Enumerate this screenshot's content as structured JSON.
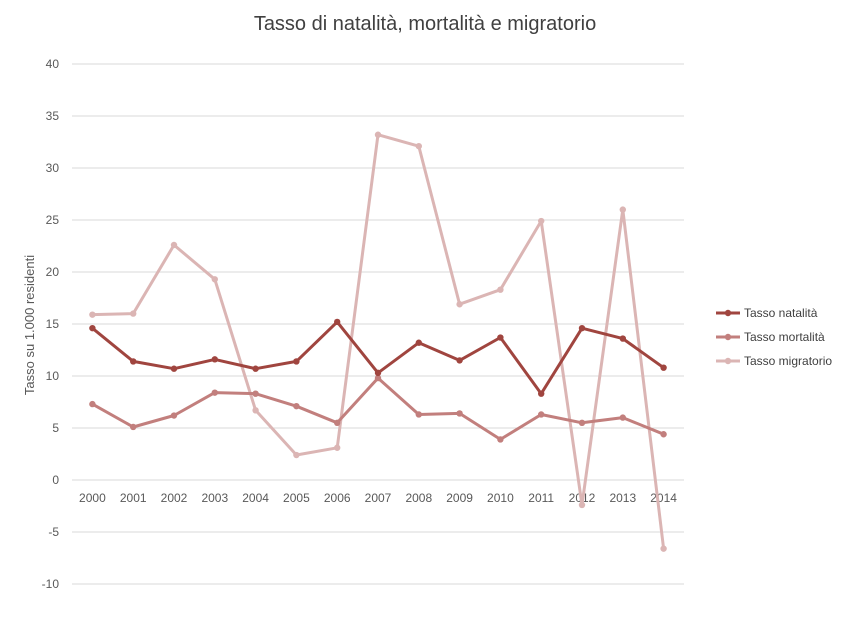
{
  "chart_data": {
    "type": "line",
    "title": "Tasso di natalità, mortalità e migratorio",
    "xlabel": "",
    "ylabel": "Tasso su 1.000 residenti",
    "categories": [
      "2000",
      "2001",
      "2002",
      "2003",
      "2004",
      "2005",
      "2006",
      "2007",
      "2008",
      "2009",
      "2010",
      "2011",
      "2012",
      "2013",
      "2014"
    ],
    "y_ticks": [
      "40",
      "35",
      "30",
      "25",
      "20",
      "15",
      "10",
      "5",
      "0",
      "-5",
      "-10"
    ],
    "ylim": [
      -10,
      40
    ],
    "grid": true,
    "legend_position": "right",
    "series": [
      {
        "name": "Tasso natalità",
        "color": "#a0453f",
        "values": [
          14.6,
          11.4,
          10.7,
          11.6,
          10.7,
          11.4,
          15.2,
          10.3,
          13.2,
          11.5,
          13.7,
          8.3,
          14.6,
          13.6,
          10.8
        ]
      },
      {
        "name": "Tasso mortalità",
        "color": "#c27f7d",
        "values": [
          7.3,
          5.1,
          6.2,
          8.4,
          8.3,
          7.1,
          5.5,
          9.8,
          6.3,
          6.4,
          3.9,
          6.3,
          5.5,
          6.0,
          4.4
        ]
      },
      {
        "name": "Tasso migratorio",
        "color": "#dbb5b4",
        "values": [
          15.9,
          16.0,
          22.6,
          19.3,
          6.7,
          2.4,
          3.1,
          33.2,
          32.1,
          16.9,
          18.3,
          24.9,
          -2.4,
          26.0,
          -6.6
        ]
      }
    ]
  }
}
